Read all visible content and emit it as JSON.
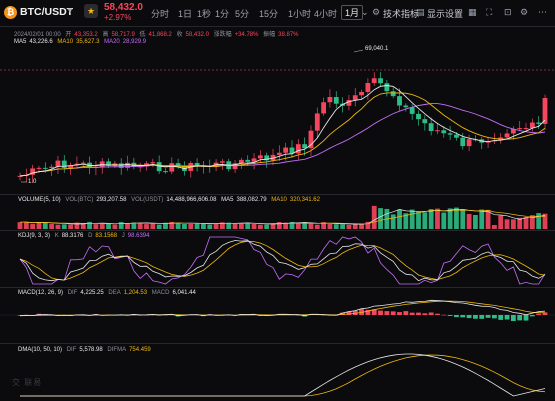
{
  "header": {
    "logo_glyph": "₿",
    "symbol": "BTC/USDT",
    "star_glyph": "★",
    "price": "58,432.0",
    "change": "+2.97%",
    "timeframes": [
      "分时",
      "1日",
      "1秒",
      "1分",
      "5分",
      "15分",
      "1小时",
      "4小时",
      "1月"
    ],
    "active_timeframe": "1月",
    "dropdown_glyph": "⌄",
    "indicators_label": "技术指标",
    "settings_label": "显示设置"
  },
  "main_info": {
    "date": "2024/02/01 00:00",
    "open_label": "开",
    "open": "43,353.2",
    "high_label": "高",
    "high": "58,717.9",
    "low_label": "低",
    "low": "41,868.2",
    "close_label": "收",
    "close": "58,432.0",
    "chg_label": "涨跌幅",
    "chg": "+34.78%",
    "amp_label": "振幅",
    "amp": "38.87%"
  },
  "ma_info": {
    "ma5_label": "MA5",
    "ma5": "43,226.6",
    "ma10_label": "MA10",
    "ma10": "35,627.3",
    "ma20_label": "MA20",
    "ma20": "28,929.9"
  },
  "annotations": {
    "high_marker": "69,040.1",
    "low_marker": "1.0"
  },
  "volume_info": {
    "label": "VOLUME(5, 10)",
    "vol_btc_label": "VOL(BTC)",
    "vol_btc": "293,207.58",
    "vol_usdt_label": "VOL(USDT)",
    "vol_usdt": "14,488,966,606.08",
    "ma5_label": "MA5",
    "ma5": "388,082.79",
    "ma10_label": "MA10",
    "ma10": "320,341.62"
  },
  "kdj_info": {
    "label": "KDJ(9, 3, 3)",
    "k_label": "K",
    "k": "88.3176",
    "d_label": "D",
    "d": "83.1568",
    "j_label": "J",
    "j": "98.6394"
  },
  "macd_info": {
    "label": "MACD(12, 26, 9)",
    "dif_label": "DIF",
    "dif": "4,225.25",
    "dea_label": "DEA",
    "dea": "1,204.53",
    "macd_label": "MACD",
    "macd": "6,041.44"
  },
  "dma_info": {
    "label": "DMA(10, 50, 10)",
    "dif_label": "DIF",
    "dif": "5,578.98",
    "difma_label": "DIFMA",
    "difma": "754.459"
  },
  "watermark": "交 联易",
  "colors": {
    "up": "#f6465d",
    "down": "#2ebd85",
    "ma5": "#e8e8e8",
    "ma10": "#f0b90b",
    "ma20": "#c36ef7"
  }
}
